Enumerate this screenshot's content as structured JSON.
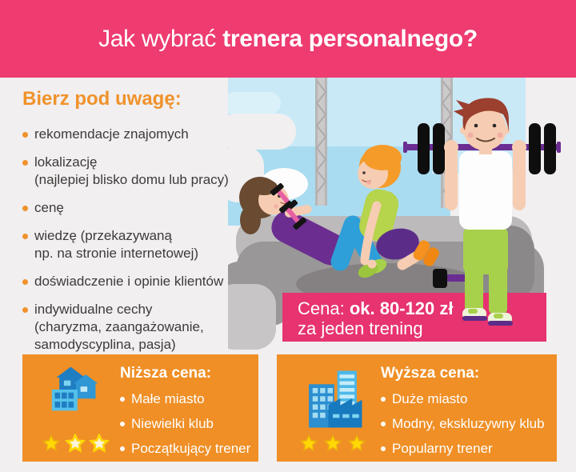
{
  "page": {
    "background": "#f1eff0"
  },
  "header": {
    "background": "#ee3b70",
    "title_regular": "Jak wybrać ",
    "title_bold": "trenera personalnego?"
  },
  "considerations": {
    "heading": "Bierz pod uwagę:",
    "items": [
      {
        "lines": [
          "rekomendacje znajomych"
        ]
      },
      {
        "lines": [
          "lokalizację",
          "(najlepiej blisko domu lub pracy)"
        ]
      },
      {
        "lines": [
          "cenę"
        ]
      },
      {
        "lines": [
          "wiedzę (przekazywaną",
          "np. na stronie internetowej)"
        ]
      },
      {
        "lines": [
          "doświadczenie i opinie klientów"
        ]
      },
      {
        "lines": [
          "indywidualne cechy",
          "(charyzma, zaangażowanie,",
          "samodyscyplina, pasja)"
        ]
      }
    ]
  },
  "price_box": {
    "background": "#e73370",
    "label": "Cena: ",
    "value": "ok. 80-120 zł",
    "line2": "za jeden trening"
  },
  "comparison_boxes": [
    {
      "title": "Niższa cena:",
      "items": [
        "Małe miasto",
        "Niewielki klub",
        "Początkujący trener"
      ],
      "stars_filled": 1,
      "stars_total": 3,
      "icon": "small-town-icon"
    },
    {
      "title": "Wyższa cena:",
      "items": [
        "Duże miasto",
        "Modny, ekskluzywny klub",
        "Popularny trener"
      ],
      "stars_filled": 3,
      "stars_total": 3,
      "icon": "big-city-icon"
    }
  ],
  "colors": {
    "accent_pink": "#ee3b70",
    "price_pink": "#e73370",
    "accent_orange": "#ef8f26",
    "heading_orange": "#f0922b",
    "star_yellow": "#ffd803",
    "icon_blue_dark": "#1f7dc2",
    "icon_blue_mid": "#2e97d4",
    "icon_blue_light": "#4cb8e8",
    "text_dark": "#3e3a39"
  }
}
